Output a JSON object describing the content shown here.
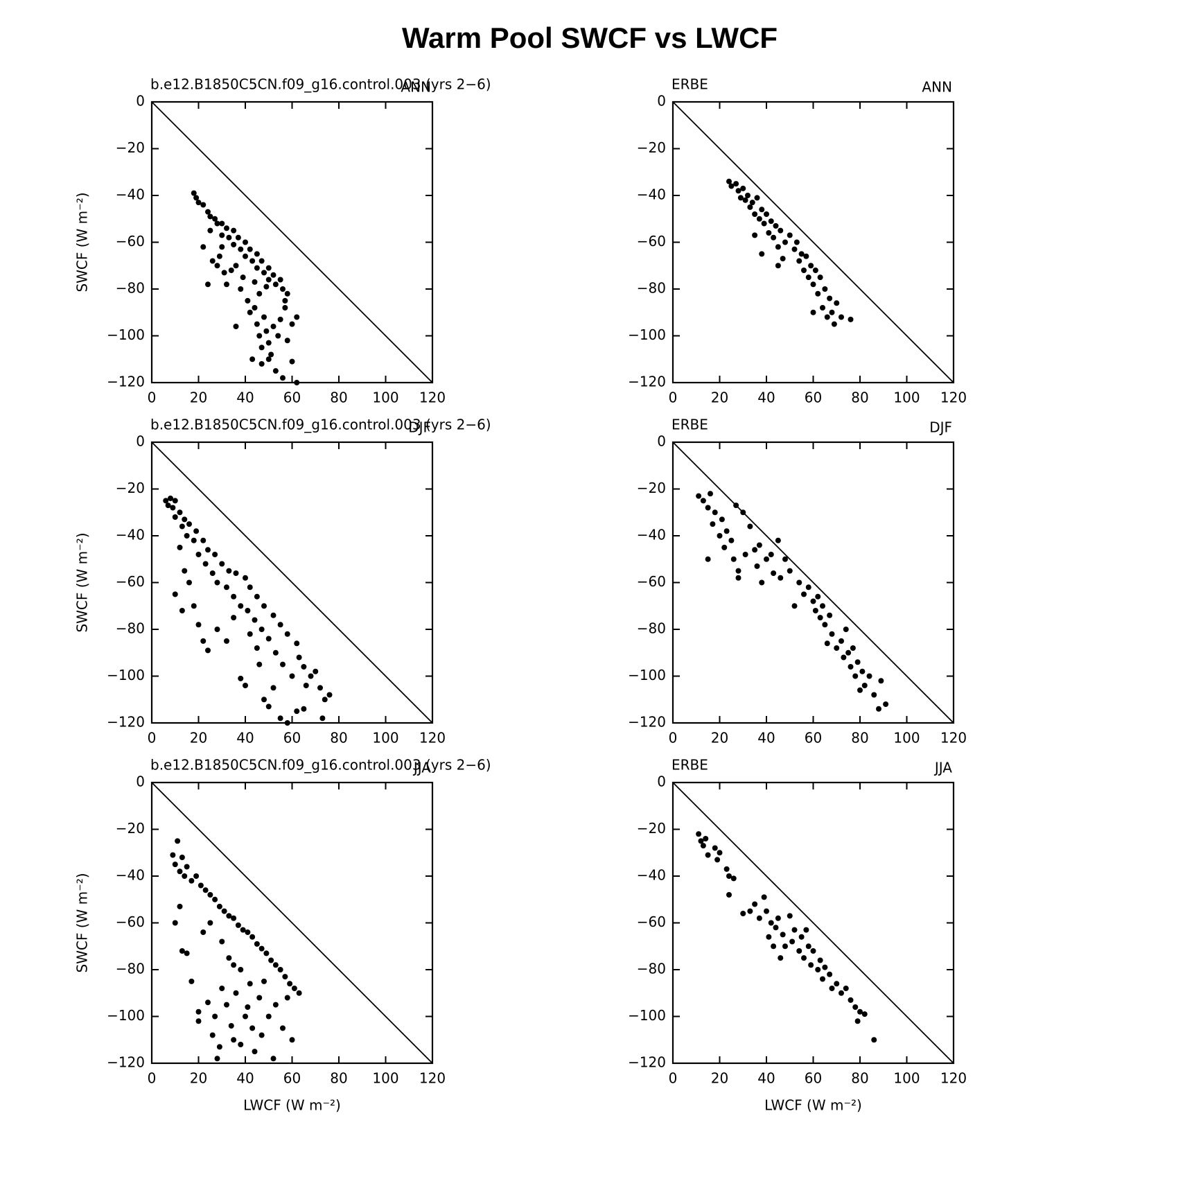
{
  "title": "Warm Pool SWCF vs LWCF",
  "chart_data": [
    {
      "type": "scatter",
      "title": "b.e12.B1850C5CN.f09_g16.control.003 (yrs 2−6)",
      "right_title": "ANN",
      "ylabel": "SWCF (W m⁻²)",
      "color": "#000000",
      "xlim": [
        0,
        120
      ],
      "ylim": [
        -120,
        0
      ],
      "xticks": [
        0,
        20,
        40,
        60,
        80,
        100,
        120
      ],
      "yticks": [
        {
          "value": 0,
          "label": "0"
        },
        {
          "value": -20,
          "label": "−20"
        },
        {
          "value": -40,
          "label": "−40"
        },
        {
          "value": -60,
          "label": "−60"
        },
        {
          "value": -80,
          "label": "−80"
        },
        {
          "value": -100,
          "label": "−100"
        },
        {
          "value": -120,
          "label": "−120"
        }
      ],
      "reference_line": {
        "x": [
          0,
          120
        ],
        "values": [
          0,
          -120
        ]
      },
      "x": [
        18,
        19,
        20,
        22,
        24,
        25,
        27,
        28,
        30,
        30,
        32,
        33,
        35,
        35,
        37,
        38,
        40,
        40,
        42,
        43,
        45,
        45,
        47,
        48,
        50,
        50,
        52,
        53,
        55,
        56,
        58,
        57,
        22,
        26,
        29,
        34,
        36,
        39,
        44,
        46,
        49,
        24,
        28,
        31,
        36,
        38,
        41,
        42,
        44,
        45,
        46,
        47,
        48,
        49,
        50,
        50,
        52,
        53,
        55,
        56,
        58,
        60,
        62,
        62,
        43,
        47,
        51,
        54,
        57,
        60,
        32,
        30,
        25
      ],
      "values": [
        -39,
        -41,
        -43,
        -44,
        -47,
        -49,
        -50,
        -52,
        -52,
        -57,
        -54,
        -58,
        -55,
        -61,
        -58,
        -63,
        -60,
        -66,
        -63,
        -68,
        -65,
        -71,
        -68,
        -73,
        -71,
        -76,
        -74,
        -78,
        -76,
        -80,
        -82,
        -85,
        -62,
        -68,
        -66,
        -72,
        -70,
        -75,
        -77,
        -82,
        -79,
        -78,
        -70,
        -73,
        -96,
        -80,
        -85,
        -90,
        -88,
        -95,
        -100,
        -105,
        -92,
        -98,
        -110,
        -103,
        -96,
        -115,
        -93,
        -118,
        -102,
        -95,
        -92,
        -120,
        -110,
        -112,
        -108,
        -100,
        -88,
        -111,
        -78,
        -62,
        -55
      ]
    },
    {
      "type": "scatter",
      "title": "ERBE",
      "right_title": "ANN",
      "color": "#000000",
      "xlim": [
        0,
        120
      ],
      "ylim": [
        -120,
        0
      ],
      "xticks": [
        0,
        20,
        40,
        60,
        80,
        100,
        120
      ],
      "yticks": [
        {
          "value": 0,
          "label": "0"
        },
        {
          "value": -20,
          "label": "−20"
        },
        {
          "value": -40,
          "label": "−40"
        },
        {
          "value": -60,
          "label": "−60"
        },
        {
          "value": -80,
          "label": "−80"
        },
        {
          "value": -100,
          "label": "−100"
        },
        {
          "value": -120,
          "label": "−120"
        }
      ],
      "reference_line": {
        "x": [
          0,
          120
        ],
        "values": [
          0,
          -120
        ]
      },
      "x": [
        24,
        25,
        27,
        28,
        30,
        31,
        32,
        33,
        34,
        35,
        36,
        37,
        38,
        39,
        40,
        41,
        42,
        43,
        44,
        45,
        46,
        48,
        50,
        52,
        53,
        54,
        55,
        56,
        57,
        58,
        59,
        60,
        61,
        62,
        63,
        64,
        65,
        66,
        67,
        68,
        69,
        70,
        72,
        76,
        35,
        38,
        45,
        47,
        29,
        60
      ],
      "values": [
        -34,
        -36,
        -35,
        -38,
        -37,
        -42,
        -40,
        -45,
        -43,
        -48,
        -41,
        -50,
        -46,
        -52,
        -48,
        -56,
        -51,
        -58,
        -53,
        -62,
        -55,
        -60,
        -57,
        -63,
        -60,
        -68,
        -65,
        -72,
        -66,
        -75,
        -70,
        -78,
        -72,
        -82,
        -75,
        -88,
        -80,
        -92,
        -84,
        -90,
        -95,
        -86,
        -92,
        -93,
        -57,
        -65,
        -70,
        -67,
        -41,
        -90
      ]
    },
    {
      "type": "scatter",
      "title": "b.e12.B1850C5CN.f09_g16.control.003 (yrs 2−6)",
      "right_title": "DJF",
      "ylabel": "SWCF (W m⁻²)",
      "color": "#000000",
      "xlim": [
        0,
        120
      ],
      "ylim": [
        -120,
        0
      ],
      "xticks": [
        0,
        20,
        40,
        60,
        80,
        100,
        120
      ],
      "yticks": [
        {
          "value": 0,
          "label": "0"
        },
        {
          "value": -20,
          "label": "−20"
        },
        {
          "value": -40,
          "label": "−40"
        },
        {
          "value": -60,
          "label": "−60"
        },
        {
          "value": -80,
          "label": "−80"
        },
        {
          "value": -100,
          "label": "−100"
        },
        {
          "value": -120,
          "label": "−120"
        }
      ],
      "reference_line": {
        "x": [
          0,
          120
        ],
        "values": [
          0,
          -120
        ]
      },
      "x": [
        6,
        7,
        8,
        9,
        10,
        10,
        12,
        13,
        14,
        15,
        16,
        18,
        19,
        20,
        22,
        23,
        24,
        26,
        27,
        28,
        30,
        32,
        33,
        35,
        36,
        38,
        40,
        41,
        42,
        44,
        45,
        47,
        48,
        50,
        52,
        53,
        55,
        56,
        58,
        60,
        62,
        63,
        65,
        66,
        68,
        70,
        72,
        74,
        76,
        12,
        14,
        16,
        18,
        20,
        22,
        24,
        10,
        13,
        28,
        32,
        35,
        38,
        40,
        46,
        48,
        50,
        52,
        55,
        58,
        62,
        65,
        73,
        45,
        42
      ],
      "values": [
        -25,
        -27,
        -24,
        -28,
        -25,
        -32,
        -30,
        -36,
        -33,
        -40,
        -35,
        -42,
        -38,
        -48,
        -42,
        -52,
        -46,
        -56,
        -48,
        -60,
        -52,
        -62,
        -55,
        -66,
        -56,
        -70,
        -58,
        -72,
        -62,
        -76,
        -66,
        -80,
        -70,
        -84,
        -74,
        -90,
        -78,
        -95,
        -82,
        -100,
        -86,
        -92,
        -96,
        -104,
        -100,
        -98,
        -105,
        -110,
        -108,
        -45,
        -55,
        -60,
        -70,
        -78,
        -85,
        -89,
        -65,
        -72,
        -80,
        -85,
        -75,
        -101,
        -104,
        -95,
        -110,
        -113,
        -105,
        -118,
        -120,
        -115,
        -114,
        -118,
        -88,
        -82
      ]
    },
    {
      "type": "scatter",
      "title": "ERBE",
      "right_title": "DJF",
      "color": "#000000",
      "xlim": [
        0,
        120
      ],
      "ylim": [
        -120,
        0
      ],
      "xticks": [
        0,
        20,
        40,
        60,
        80,
        100,
        120
      ],
      "yticks": [
        {
          "value": 0,
          "label": "0"
        },
        {
          "value": -20,
          "label": "−20"
        },
        {
          "value": -40,
          "label": "−40"
        },
        {
          "value": -60,
          "label": "−60"
        },
        {
          "value": -80,
          "label": "−80"
        },
        {
          "value": -100,
          "label": "−100"
        },
        {
          "value": -120,
          "label": "−120"
        }
      ],
      "reference_line": {
        "x": [
          0,
          120
        ],
        "values": [
          0,
          -120
        ]
      },
      "x": [
        11,
        13,
        15,
        16,
        17,
        18,
        20,
        21,
        22,
        23,
        25,
        26,
        27,
        28,
        30,
        31,
        33,
        35,
        37,
        38,
        40,
        42,
        43,
        45,
        46,
        48,
        50,
        52,
        54,
        56,
        58,
        60,
        61,
        62,
        63,
        64,
        65,
        66,
        67,
        68,
        70,
        72,
        73,
        74,
        75,
        76,
        77,
        78,
        79,
        80,
        81,
        82,
        84,
        86,
        88,
        89,
        91,
        15,
        28,
        36
      ],
      "values": [
        -23,
        -25,
        -28,
        -22,
        -35,
        -30,
        -40,
        -33,
        -45,
        -38,
        -42,
        -50,
        -27,
        -55,
        -30,
        -48,
        -36,
        -46,
        -44,
        -60,
        -50,
        -48,
        -56,
        -42,
        -58,
        -50,
        -55,
        -70,
        -60,
        -65,
        -62,
        -68,
        -72,
        -66,
        -75,
        -70,
        -78,
        -86,
        -74,
        -82,
        -88,
        -85,
        -92,
        -80,
        -90,
        -96,
        -88,
        -100,
        -94,
        -106,
        -98,
        -104,
        -100,
        -108,
        -114,
        -102,
        -112,
        -50,
        -58,
        -53
      ]
    },
    {
      "type": "scatter",
      "title": "b.e12.B1850C5CN.f09_g16.control.003 (yrs 2−6)",
      "right_title": "JJA",
      "ylabel": "SWCF (W m⁻²)",
      "xlabel": "LWCF (W m⁻²)",
      "color": "#000000",
      "xlim": [
        0,
        120
      ],
      "ylim": [
        -120,
        0
      ],
      "xticks": [
        0,
        20,
        40,
        60,
        80,
        100,
        120
      ],
      "yticks": [
        {
          "value": 0,
          "label": "0"
        },
        {
          "value": -20,
          "label": "−20"
        },
        {
          "value": -40,
          "label": "−40"
        },
        {
          "value": -60,
          "label": "−60"
        },
        {
          "value": -80,
          "label": "−80"
        },
        {
          "value": -100,
          "label": "−100"
        },
        {
          "value": -120,
          "label": "−120"
        }
      ],
      "reference_line": {
        "x": [
          0,
          120
        ],
        "values": [
          0,
          -120
        ]
      },
      "x": [
        9,
        10,
        11,
        12,
        13,
        14,
        15,
        17,
        19,
        21,
        23,
        25,
        27,
        29,
        31,
        33,
        35,
        37,
        39,
        41,
        43,
        45,
        47,
        49,
        51,
        53,
        55,
        57,
        59,
        61,
        63,
        10,
        12,
        13,
        15,
        17,
        20,
        20,
        22,
        24,
        26,
        27,
        28,
        29,
        30,
        32,
        34,
        35,
        36,
        38,
        40,
        41,
        43,
        44,
        46,
        47,
        48,
        50,
        52,
        53,
        56,
        58,
        60,
        35,
        38,
        42,
        25,
        30,
        33
      ],
      "values": [
        -31,
        -35,
        -25,
        -38,
        -32,
        -40,
        -36,
        -42,
        -40,
        -44,
        -46,
        -48,
        -50,
        -53,
        -55,
        -57,
        -58,
        -61,
        -63,
        -64,
        -66,
        -69,
        -71,
        -73,
        -76,
        -78,
        -80,
        -83,
        -86,
        -88,
        -90,
        -60,
        -53,
        -72,
        -73,
        -85,
        -98,
        -102,
        -64,
        -94,
        -108,
        -100,
        -118,
        -113,
        -88,
        -95,
        -104,
        -110,
        -90,
        -112,
        -100,
        -96,
        -105,
        -115,
        -92,
        -108,
        -85,
        -100,
        -118,
        -95,
        -105,
        -92,
        -110,
        -78,
        -80,
        -86,
        -60,
        -68,
        -75
      ]
    },
    {
      "type": "scatter",
      "title": "ERBE",
      "right_title": "JJA",
      "xlabel": "LWCF (W m⁻²)",
      "color": "#000000",
      "xlim": [
        0,
        120
      ],
      "ylim": [
        -120,
        0
      ],
      "xticks": [
        0,
        20,
        40,
        60,
        80,
        100,
        120
      ],
      "yticks": [
        {
          "value": 0,
          "label": "0"
        },
        {
          "value": -20,
          "label": "−20"
        },
        {
          "value": -40,
          "label": "−40"
        },
        {
          "value": -60,
          "label": "−60"
        },
        {
          "value": -80,
          "label": "−80"
        },
        {
          "value": -100,
          "label": "−100"
        },
        {
          "value": -120,
          "label": "−120"
        }
      ],
      "reference_line": {
        "x": [
          0,
          120
        ],
        "values": [
          0,
          -120
        ]
      },
      "x": [
        11,
        12,
        13,
        14,
        15,
        18,
        19,
        20,
        23,
        24,
        24,
        26,
        30,
        33,
        35,
        37,
        39,
        40,
        42,
        44,
        45,
        47,
        48,
        50,
        51,
        52,
        54,
        55,
        56,
        57,
        58,
        59,
        60,
        62,
        63,
        64,
        65,
        67,
        68,
        70,
        72,
        74,
        76,
        78,
        79,
        80,
        82,
        86,
        43,
        46,
        41
      ],
      "values": [
        -22,
        -25,
        -27,
        -24,
        -31,
        -28,
        -33,
        -30,
        -37,
        -40,
        -48,
        -41,
        -56,
        -55,
        -52,
        -58,
        -49,
        -55,
        -60,
        -62,
        -58,
        -65,
        -70,
        -57,
        -68,
        -63,
        -72,
        -66,
        -75,
        -63,
        -70,
        -78,
        -72,
        -80,
        -76,
        -84,
        -79,
        -82,
        -88,
        -86,
        -90,
        -88,
        -93,
        -96,
        -102,
        -98,
        -99,
        -110,
        -70,
        -75,
        -66
      ]
    }
  ]
}
